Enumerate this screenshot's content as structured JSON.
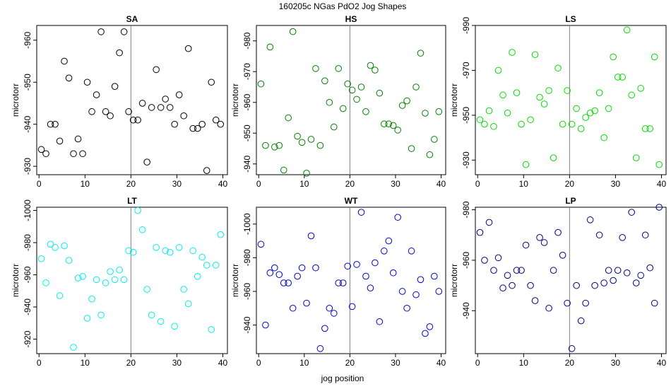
{
  "figure": {
    "suptitle": "160205c   NGas PdO2 Jog Shapes",
    "xlabel": "jog position"
  },
  "chart_data": [
    {
      "type": "scatter",
      "name": "SA",
      "title": "SA",
      "ylabel": "microtorr",
      "xlabel": "",
      "color": "#000000",
      "xlim": [
        -0.5,
        41
      ],
      "ylim": [
        963.5,
        928
      ],
      "yticks": [
        930,
        940,
        950,
        960
      ],
      "ytick_labels": [
        "-930",
        "-940",
        "-950",
        "-960"
      ],
      "xticks": [
        0,
        10,
        20,
        30,
        40
      ],
      "vline": 20,
      "x": [
        0.5,
        1.5,
        2.5,
        3.5,
        4.5,
        5.5,
        6.5,
        7.5,
        8.5,
        9.5,
        10.5,
        11.5,
        12.5,
        13.5,
        14.5,
        15.5,
        16.5,
        17.5,
        18.5,
        19.5,
        20.5,
        21.5,
        22.5,
        23.5,
        24.5,
        25.5,
        26.5,
        27.5,
        28.5,
        29.5,
        30.5,
        31.5,
        32.5,
        33.5,
        34.5,
        35.5,
        36.5,
        37.5,
        38.5,
        39.5
      ],
      "y": [
        934,
        933,
        940,
        940,
        936,
        955,
        951,
        933,
        936.5,
        933,
        950,
        943,
        947,
        962,
        943,
        942,
        949,
        957,
        962,
        943,
        941,
        941,
        945,
        931,
        944,
        953,
        944,
        946,
        944,
        940,
        947,
        942,
        958,
        939,
        939,
        940,
        929,
        950,
        941,
        940
      ]
    },
    {
      "type": "scatter",
      "name": "HS",
      "title": "HS",
      "ylabel": "microtorr",
      "xlabel": "",
      "color": "#008000",
      "xlim": [
        -0.5,
        41
      ],
      "ylim": [
        985,
        936.5
      ],
      "yticks": [
        940,
        950,
        960,
        970,
        980
      ],
      "ytick_labels": [
        "-940",
        "-950",
        "-960",
        "-970",
        "-980"
      ],
      "xticks": [
        0,
        10,
        20,
        30,
        40
      ],
      "vline": 20,
      "x": [
        0.5,
        1.5,
        2.5,
        3.5,
        4.5,
        5.5,
        6.5,
        7.5,
        8.5,
        9.5,
        10.5,
        11.5,
        12.5,
        13.5,
        14.5,
        15.5,
        16.5,
        17.5,
        18.5,
        19.5,
        20.5,
        21.5,
        22.5,
        23.5,
        24.5,
        25.5,
        26.5,
        27.5,
        28.5,
        29.5,
        30.5,
        31.5,
        32.5,
        33.5,
        34.5,
        35.5,
        36.5,
        37.5,
        38.5,
        39.5
      ],
      "y": [
        966,
        946,
        978,
        945.5,
        946,
        938,
        955,
        983,
        949,
        947,
        937,
        948,
        971,
        946,
        967,
        960,
        952,
        971,
        958,
        966,
        964,
        961,
        965,
        957,
        972,
        970.5,
        963,
        953,
        953,
        952.5,
        951,
        959,
        960.5,
        945,
        965,
        976,
        956.5,
        943,
        948,
        957
      ]
    },
    {
      "type": "scatter",
      "name": "LS",
      "title": "LS",
      "ylabel": "microtorr",
      "xlabel": "",
      "color": "#00dd00",
      "xlim": [
        -0.5,
        41
      ],
      "ylim": [
        990,
        923.5
      ],
      "yticks": [
        930,
        950,
        970,
        990
      ],
      "ytick_labels": [
        "-930",
        "-950",
        "-970",
        "-990"
      ],
      "xticks": [
        0,
        10,
        20,
        30,
        40
      ],
      "vline": 20,
      "x": [
        0.5,
        1.5,
        2.5,
        3.5,
        4.5,
        5.5,
        6.5,
        7.5,
        8.5,
        9.5,
        10.5,
        11.5,
        12.5,
        13.5,
        14.5,
        15.5,
        16.5,
        17.5,
        18.5,
        19.5,
        20.5,
        21.5,
        22.5,
        23.5,
        24.5,
        25.5,
        26.5,
        27.5,
        28.5,
        29.5,
        30.5,
        31.5,
        32.5,
        33.5,
        34.5,
        35.5,
        36.5,
        37.5,
        38.5,
        39.5
      ],
      "y": [
        948,
        946,
        952,
        945,
        970,
        959,
        951,
        978,
        960,
        946,
        928,
        948,
        977,
        958,
        955,
        961,
        931,
        971,
        946,
        961,
        946,
        953,
        944,
        949,
        951,
        952,
        960,
        940,
        953,
        976,
        967,
        967,
        988,
        959,
        931,
        962,
        944,
        944,
        976,
        928
      ]
    },
    {
      "type": "scatter",
      "name": "LT",
      "title": "LT",
      "ylabel": "microtorr",
      "xlabel": "",
      "color": "#00eeee",
      "xlim": [
        -0.5,
        41
      ],
      "ylim": [
        1002,
        911
      ],
      "yticks": [
        920,
        940,
        960,
        980,
        1000
      ],
      "ytick_labels": [
        "-920",
        "-940",
        "-960",
        "-980",
        "-1000"
      ],
      "xticks": [
        0,
        10,
        20,
        30,
        40
      ],
      "vline": 20,
      "x": [
        0.5,
        1.5,
        2.5,
        3.5,
        4.5,
        5.5,
        6.5,
        7.5,
        8.5,
        9.5,
        10.5,
        11.5,
        12.5,
        13.5,
        14.5,
        15.5,
        16.5,
        17.5,
        18.5,
        19.5,
        20.5,
        21.5,
        22.5,
        23.5,
        24.5,
        25.5,
        26.5,
        27.5,
        28.5,
        29.5,
        30.5,
        31.5,
        32.5,
        33.5,
        34.5,
        35.5,
        36.5,
        37.5,
        38.5,
        39.5
      ],
      "y": [
        970,
        955,
        979,
        977,
        947,
        978,
        969,
        915,
        958,
        959,
        933,
        945,
        957,
        935,
        955,
        962,
        957,
        963,
        957,
        975,
        974,
        1000,
        988,
        951,
        935,
        977,
        931,
        975,
        974,
        928,
        977,
        951,
        942,
        975,
        959,
        971,
        966,
        926,
        966,
        985
      ]
    },
    {
      "type": "scatter",
      "name": "WT",
      "title": "WT",
      "ylabel": "microtorr",
      "xlabel": "",
      "color": "#0000cc",
      "xlim": [
        -0.5,
        41
      ],
      "ylim": [
        1010,
        923
      ],
      "yticks": [
        940,
        960,
        980,
        1000
      ],
      "ytick_labels": [
        "-940",
        "-960",
        "-980",
        "-1000"
      ],
      "xticks": [
        0,
        10,
        20,
        30,
        40
      ],
      "vline": 20,
      "x": [
        0.5,
        1.5,
        2.5,
        3.5,
        4.5,
        5.5,
        6.5,
        7.5,
        8.5,
        9.5,
        10.5,
        11.5,
        12.5,
        13.5,
        14.5,
        15.5,
        16.5,
        17.5,
        18.5,
        19.5,
        20.5,
        21.5,
        22.5,
        23.5,
        24.5,
        25.5,
        26.5,
        27.5,
        28.5,
        29.5,
        30.5,
        31.5,
        32.5,
        33.5,
        34.5,
        35.5,
        36.5,
        37.5,
        38.5,
        39.5
      ],
      "y": [
        988,
        940,
        971,
        974,
        970,
        965,
        965,
        950,
        969,
        974,
        953,
        993,
        974,
        926,
        938,
        950,
        947,
        965,
        965,
        975,
        951,
        976,
        1007,
        969,
        962,
        977,
        942,
        984,
        990,
        971,
        1004,
        960,
        950,
        984,
        958,
        967,
        935,
        939,
        969,
        960
      ]
    },
    {
      "type": "scatter",
      "name": "LP",
      "title": "LP",
      "ylabel": "microtorr",
      "xlabel": "",
      "color": "#000080",
      "xlim": [
        -0.5,
        41
      ],
      "ylim": [
        981,
        923
      ],
      "yticks": [
        940,
        960,
        980
      ],
      "ytick_labels": [
        "-940",
        "-960",
        "-980"
      ],
      "xticks": [
        0,
        10,
        20,
        30,
        40
      ],
      "vline": 20,
      "x": [
        0.5,
        1.5,
        2.5,
        3.5,
        4.5,
        5.5,
        6.5,
        7.5,
        8.5,
        9.5,
        10.5,
        11.5,
        12.5,
        13.5,
        14.5,
        15.5,
        16.5,
        17.5,
        18.5,
        19.5,
        20.5,
        21.5,
        22.5,
        23.5,
        24.5,
        25.5,
        26.5,
        27.5,
        28.5,
        29.5,
        30.5,
        31.5,
        32.5,
        33.5,
        34.5,
        35.5,
        36.5,
        37.5,
        38.5,
        39.5
      ],
      "y": [
        971,
        960,
        975,
        956,
        961,
        949,
        954,
        950,
        956,
        956,
        966,
        950,
        944,
        969,
        967,
        941,
        956,
        971,
        962,
        943,
        925,
        950,
        936,
        943,
        976,
        950,
        970,
        951,
        956,
        952,
        956,
        969,
        955,
        979,
        951,
        954,
        970,
        957,
        943,
        981
      ]
    }
  ]
}
